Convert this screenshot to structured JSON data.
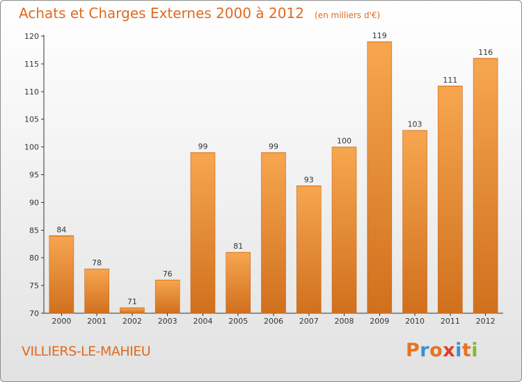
{
  "header": {
    "title": "Achats et Charges Externes 2000 à 2012",
    "unit": "(en milliers d'€)"
  },
  "footer": {
    "city": "VILLIERS-LE-MAHIEU",
    "logo_letters": [
      {
        "char": "P",
        "color": "#e8731f"
      },
      {
        "char": "r",
        "color": "#3d8fd1"
      },
      {
        "char": "o",
        "color": "#e8731f"
      },
      {
        "char": "x",
        "color": "#e23b2d"
      },
      {
        "char": "i",
        "color": "#3d8fd1"
      },
      {
        "char": "t",
        "color": "#e8731f"
      },
      {
        "char": "i",
        "color": "#7cba2f"
      }
    ]
  },
  "colors": {
    "accent": "#e06a1e",
    "bar_light": "#f7a650",
    "bar_dark": "#d0701d"
  },
  "chart_data": {
    "type": "bar",
    "title": "Achats et Charges Externes 2000 à 2012",
    "subtitle": "(en milliers d'€)",
    "categories": [
      "2000",
      "2001",
      "2002",
      "2003",
      "2004",
      "2005",
      "2006",
      "2007",
      "2008",
      "2009",
      "2010",
      "2011",
      "2012"
    ],
    "values": [
      84,
      78,
      71,
      76,
      99,
      81,
      99,
      93,
      100,
      119,
      103,
      111,
      116
    ],
    "ylim": [
      70,
      120
    ],
    "yticks": [
      70,
      75,
      80,
      85,
      90,
      95,
      100,
      105,
      110,
      115,
      120
    ],
    "grid": false,
    "data_labels": true
  }
}
